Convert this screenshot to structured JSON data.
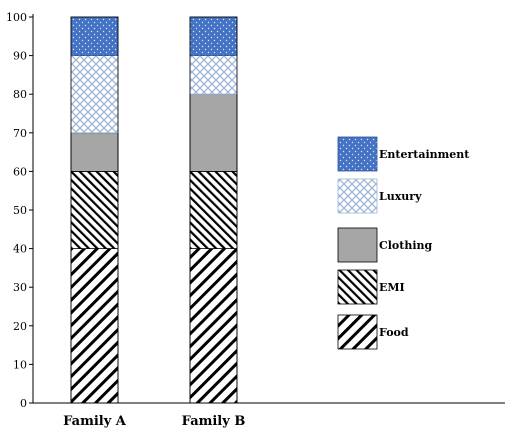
{
  "chart_data": {
    "type": "bar",
    "stacked": true,
    "categories": [
      "Family A",
      "Family B"
    ],
    "series": [
      {
        "name": "Food",
        "values": [
          40,
          40
        ],
        "color": "#000000",
        "pattern": "wide-diagonal-hatch"
      },
      {
        "name": "EMI",
        "values": [
          20,
          20
        ],
        "color": "#000000",
        "pattern": "dense-diagonal-hatch"
      },
      {
        "name": "Clothing",
        "values": [
          10,
          20
        ],
        "color": "#a6a6a6",
        "pattern": "solid"
      },
      {
        "name": "Luxury",
        "values": [
          20,
          10
        ],
        "color": "#9fb6d6",
        "pattern": "crosshatch"
      },
      {
        "name": "Entertainment",
        "values": [
          10,
          10
        ],
        "color": "#4472c4",
        "pattern": "dotted"
      }
    ],
    "legend_order": [
      "Entertainment",
      "Luxury",
      "Clothing",
      "EMI",
      "Food"
    ],
    "ylim": [
      0,
      100
    ],
    "yticks": [
      "0",
      "10",
      "20",
      "30",
      "40",
      "50",
      "60",
      "70",
      "80",
      "90",
      "100"
    ],
    "grid": false,
    "legend_position": "right",
    "title": "",
    "xlabel": "",
    "ylabel": ""
  }
}
